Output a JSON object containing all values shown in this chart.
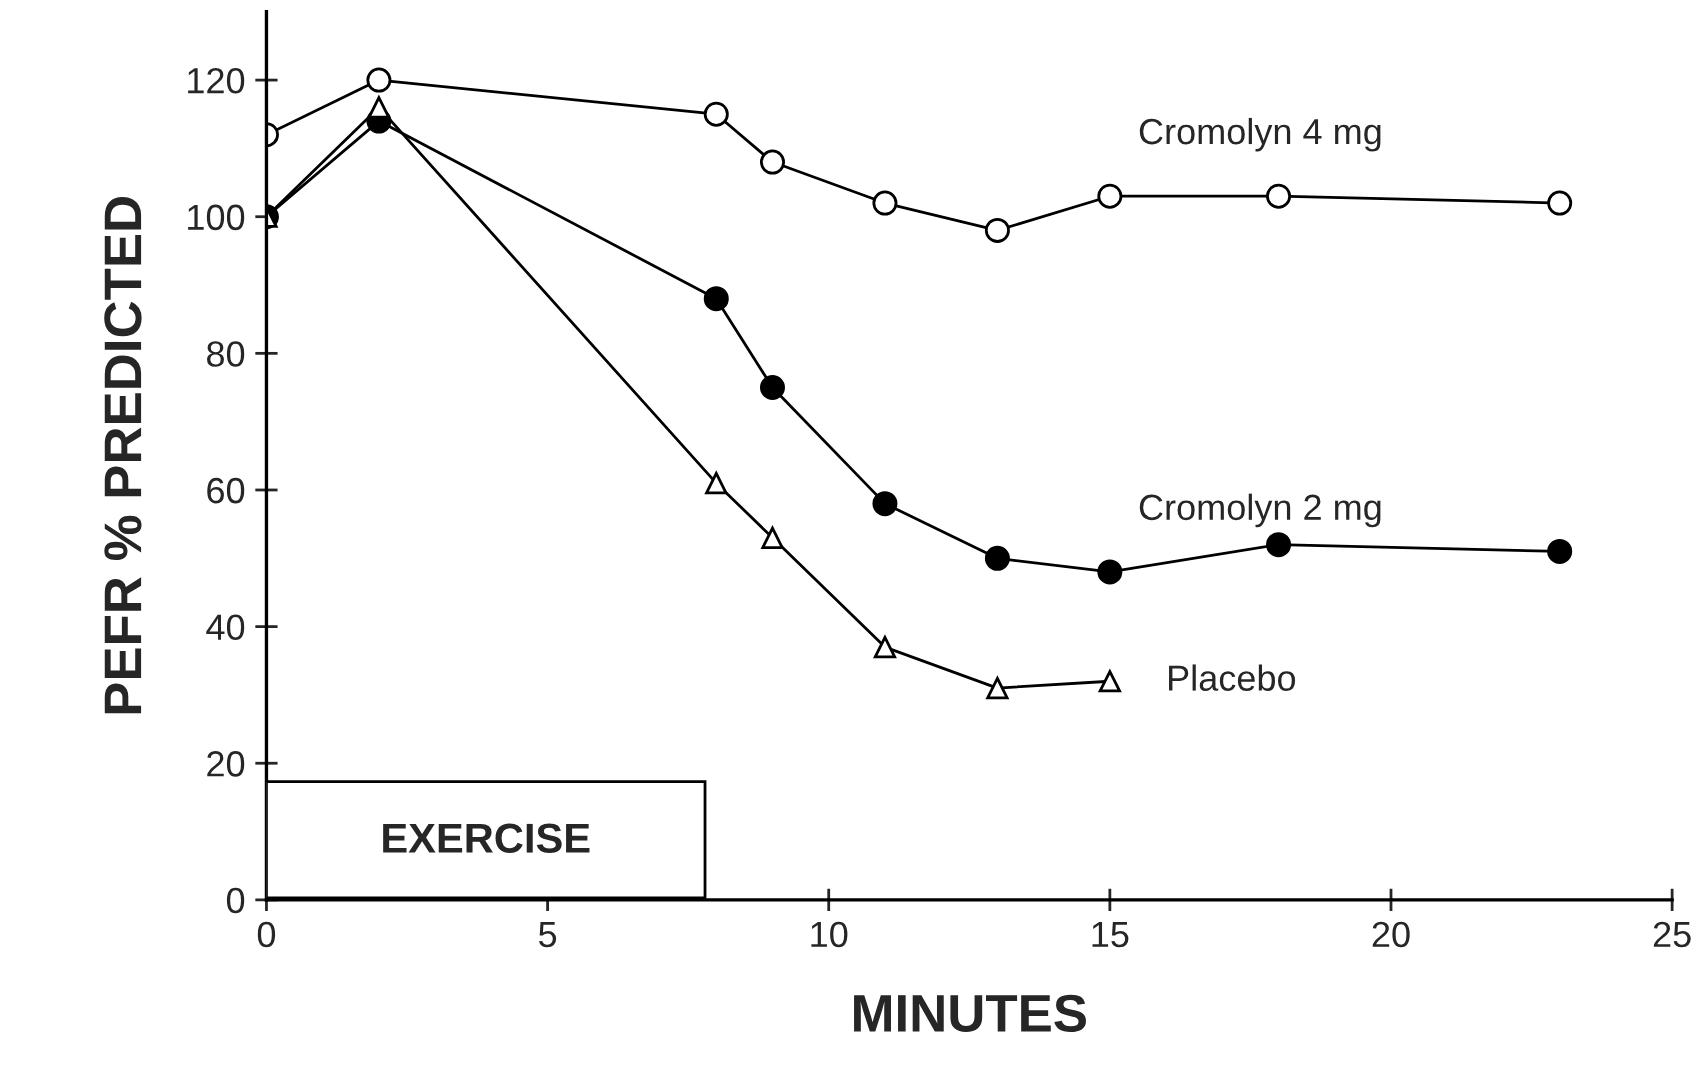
{
  "chart_data": {
    "type": "line",
    "xlabel": "MINUTES",
    "ylabel": "PEFR % PREDICTED",
    "xlim": [
      0,
      25
    ],
    "xticks": [
      0,
      5,
      10,
      15,
      20,
      25
    ],
    "ylim": [
      0,
      130
    ],
    "yticks": [
      0,
      20,
      40,
      60,
      80,
      100,
      120
    ],
    "grid": false,
    "legend": false,
    "line_style": "solid",
    "bands": [
      {
        "axis": "x",
        "from": 0,
        "to": 7.8,
        "label": "EXERCISE",
        "color": "#ffffff"
      }
    ],
    "series": [
      {
        "name": "Cromolyn 4 mg",
        "color": "#000000",
        "marker": "circle",
        "x": [
          0,
          2,
          8,
          9,
          11,
          13,
          15,
          18,
          23
        ],
        "values": [
          112,
          120,
          115,
          108,
          102,
          98,
          103,
          103,
          102
        ]
      },
      {
        "name": "Cromolyn 2 mg",
        "color": "#000000",
        "marker": "circle",
        "x": [
          0,
          2,
          8,
          9,
          11,
          13,
          15,
          18,
          23
        ],
        "values": [
          100,
          114,
          88,
          75,
          58,
          50,
          48,
          52,
          51
        ]
      },
      {
        "name": "Placebo",
        "color": "#000000",
        "marker": "triangle",
        "x": [
          0,
          2,
          8,
          9,
          11,
          13,
          15
        ],
        "values": [
          100,
          116,
          61,
          53,
          37,
          31,
          32
        ]
      }
    ]
  }
}
